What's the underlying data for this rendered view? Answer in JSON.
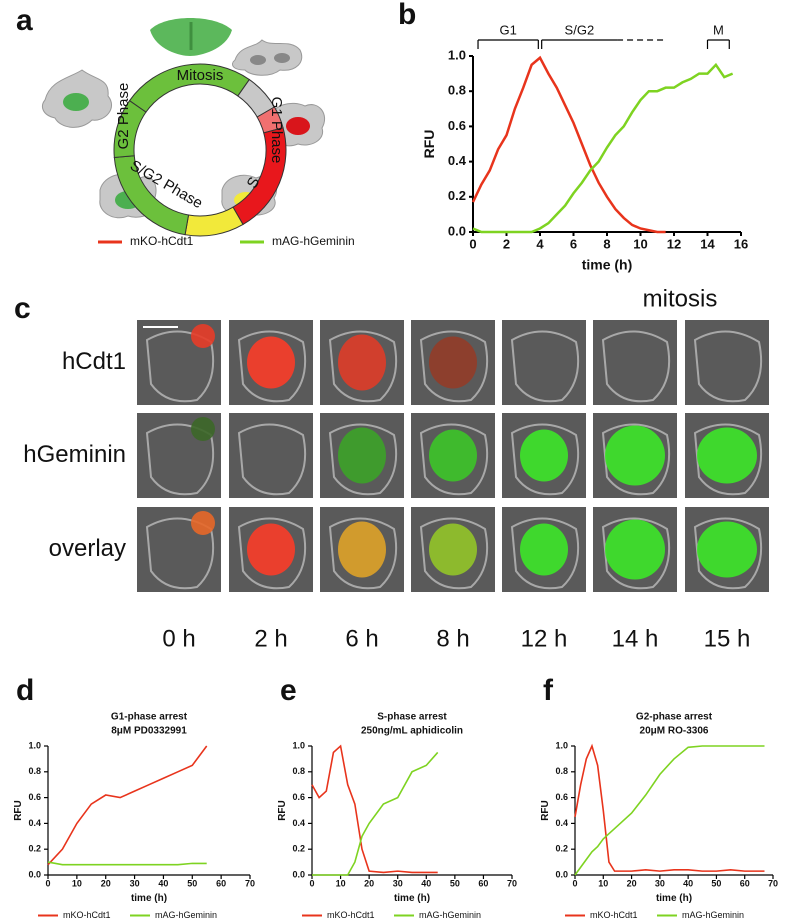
{
  "panel_labels": [
    "a",
    "b",
    "c",
    "d",
    "e",
    "f"
  ],
  "cycle": {
    "phases": [
      "Mitosis",
      "G1 Phase",
      "S",
      "S/G2 Phase",
      "G2 Phase"
    ],
    "legend": [
      {
        "name": "mKO-hCdt1",
        "color": "#e8341c"
      },
      {
        "name": "mAG-hGeminin",
        "color": "#7ed321"
      }
    ]
  },
  "images": {
    "caption": "mitosis",
    "rows": [
      "hCdt1",
      "hGeminin",
      "overlay"
    ],
    "times": [
      "0 h",
      "2 h",
      "6 h",
      "8 h",
      "12 h",
      "14 h",
      "15 h"
    ]
  },
  "chart_data": [
    {
      "type": "line",
      "ylabel": "RFU",
      "xlabel": "time (h)",
      "phases": [
        {
          "label": "G1",
          "start": 0.3,
          "end": 3.9
        },
        {
          "label": "S/G2",
          "start": 4.1,
          "end": 11.5,
          "dashed_from": 8.6
        },
        {
          "label": "M",
          "start": 14,
          "end": 15.3
        }
      ],
      "x": [
        0,
        0.5,
        1,
        1.5,
        2,
        2.5,
        3,
        3.5,
        4,
        4.5,
        5,
        5.5,
        6,
        6.5,
        7,
        7.5,
        8,
        8.5,
        9,
        9.5,
        10,
        10.5,
        11,
        11.5,
        12,
        12.5,
        13,
        13.5,
        14,
        14.5,
        15,
        15.5
      ],
      "series": [
        {
          "name": "mKO-hCdt1",
          "color": "#e8341c",
          "values": [
            0.17,
            0.27,
            0.35,
            0.47,
            0.55,
            0.7,
            0.82,
            0.95,
            0.99,
            0.9,
            0.82,
            0.72,
            0.62,
            0.5,
            0.38,
            0.28,
            0.2,
            0.13,
            0.08,
            0.04,
            0.02,
            0.01,
            0,
            0,
            null,
            null,
            null,
            null,
            null,
            null,
            null,
            null
          ]
        },
        {
          "name": "mAG-hGeminin",
          "color": "#7ed321",
          "values": [
            0.02,
            0,
            0,
            0,
            0,
            0,
            0,
            0,
            0.02,
            0.05,
            0.1,
            0.15,
            0.22,
            0.28,
            0.35,
            0.4,
            0.48,
            0.55,
            0.6,
            0.68,
            0.75,
            0.8,
            0.8,
            0.82,
            0.82,
            0.85,
            0.87,
            0.9,
            0.9,
            0.95,
            0.88,
            0.9
          ]
        }
      ],
      "xlim": [
        0,
        16
      ],
      "xticks": [
        0,
        2,
        4,
        6,
        8,
        10,
        12,
        14,
        16
      ],
      "ylim": [
        0,
        1
      ],
      "yticks": [
        {
          "value": 0,
          "label": "0.0"
        },
        0.2,
        0.4,
        0.6,
        0.8,
        {
          "value": 1,
          "label": "1.0"
        }
      ]
    },
    {
      "type": "line",
      "title": "G1-phase arrest",
      "subtitle": "8μM PD0332991",
      "ylabel": "RFU",
      "xlabel": "time (h)",
      "legend": "bottom",
      "x": [
        0,
        5,
        10,
        15,
        20,
        25,
        30,
        35,
        40,
        45,
        50,
        55
      ],
      "series": [
        {
          "name": "mKO-hCdt1",
          "color": "#e8341c",
          "values": [
            0.08,
            0.2,
            0.4,
            0.55,
            0.62,
            0.6,
            0.65,
            0.7,
            0.75,
            0.8,
            0.85,
            1.0
          ]
        },
        {
          "name": "mAG-hGeminin",
          "color": "#7ed321",
          "values": [
            0.1,
            0.08,
            0.08,
            0.08,
            0.08,
            0.08,
            0.08,
            0.08,
            0.08,
            0.08,
            0.09,
            0.09
          ]
        }
      ],
      "xlim": [
        0,
        70
      ],
      "xticks": [
        0,
        10,
        20,
        30,
        40,
        50,
        60,
        70
      ],
      "ylim": [
        0,
        1
      ],
      "yticks": [
        {
          "value": 0,
          "label": "0.0"
        },
        0.2,
        0.4,
        0.6,
        0.8,
        {
          "value": 1,
          "label": "1.0"
        }
      ]
    },
    {
      "type": "line",
      "title": "S-phase arrest",
      "subtitle": "250ng/mL aphidicolin",
      "ylabel": "RFU",
      "xlabel": "time (h)",
      "legend": "bottom",
      "x": [
        0,
        2.5,
        5,
        7.5,
        10,
        12.5,
        15,
        17.5,
        20,
        25,
        30,
        35,
        40,
        44
      ],
      "series": [
        {
          "name": "mKO-hCdt1",
          "color": "#e8341c",
          "values": [
            0.7,
            0.6,
            0.65,
            0.95,
            1.0,
            0.7,
            0.55,
            0.2,
            0.03,
            0.02,
            0.03,
            0.02,
            0.02,
            0.02
          ]
        },
        {
          "name": "mAG-hGeminin",
          "color": "#7ed321",
          "values": [
            0,
            0,
            0,
            0,
            0,
            0,
            0.1,
            0.3,
            0.4,
            0.55,
            0.6,
            0.8,
            0.85,
            0.95
          ]
        }
      ],
      "xlim": [
        0,
        70
      ],
      "xticks": [
        0,
        10,
        20,
        30,
        40,
        50,
        60,
        70
      ],
      "ylim": [
        0,
        1
      ],
      "yticks": [
        {
          "value": 0,
          "label": "0.0"
        },
        0.2,
        0.4,
        0.6,
        0.8,
        {
          "value": 1,
          "label": "1.0"
        }
      ]
    },
    {
      "type": "line",
      "title": "G2-phase arrest",
      "subtitle": "20μM RO-3306",
      "ylabel": "RFU",
      "xlabel": "time (h)",
      "legend": "bottom",
      "x": [
        0,
        2,
        4,
        6,
        8,
        10,
        12,
        14,
        20,
        25,
        30,
        35,
        40,
        45,
        50,
        55,
        60,
        67
      ],
      "series": [
        {
          "name": "mKO-hCdt1",
          "color": "#e8341c",
          "values": [
            0.45,
            0.7,
            0.9,
            1.0,
            0.85,
            0.5,
            0.1,
            0.03,
            0.03,
            0.04,
            0.03,
            0.04,
            0.04,
            0.03,
            0.03,
            0.04,
            0.03,
            0.03
          ]
        },
        {
          "name": "mAG-hGeminin",
          "color": "#7ed321",
          "values": [
            0,
            0.06,
            0.12,
            0.18,
            0.22,
            0.28,
            0.32,
            0.36,
            0.48,
            0.62,
            0.78,
            0.9,
            0.99,
            1.0,
            1.0,
            1.0,
            1.0,
            1.0
          ]
        }
      ],
      "xlim": [
        0,
        70
      ],
      "xticks": [
        0,
        10,
        20,
        30,
        40,
        50,
        60,
        70
      ],
      "ylim": [
        0,
        1
      ],
      "yticks": [
        {
          "value": 0,
          "label": "0.0"
        },
        0.2,
        0.4,
        0.6,
        0.8,
        {
          "value": 1,
          "label": "1.0"
        }
      ]
    }
  ]
}
